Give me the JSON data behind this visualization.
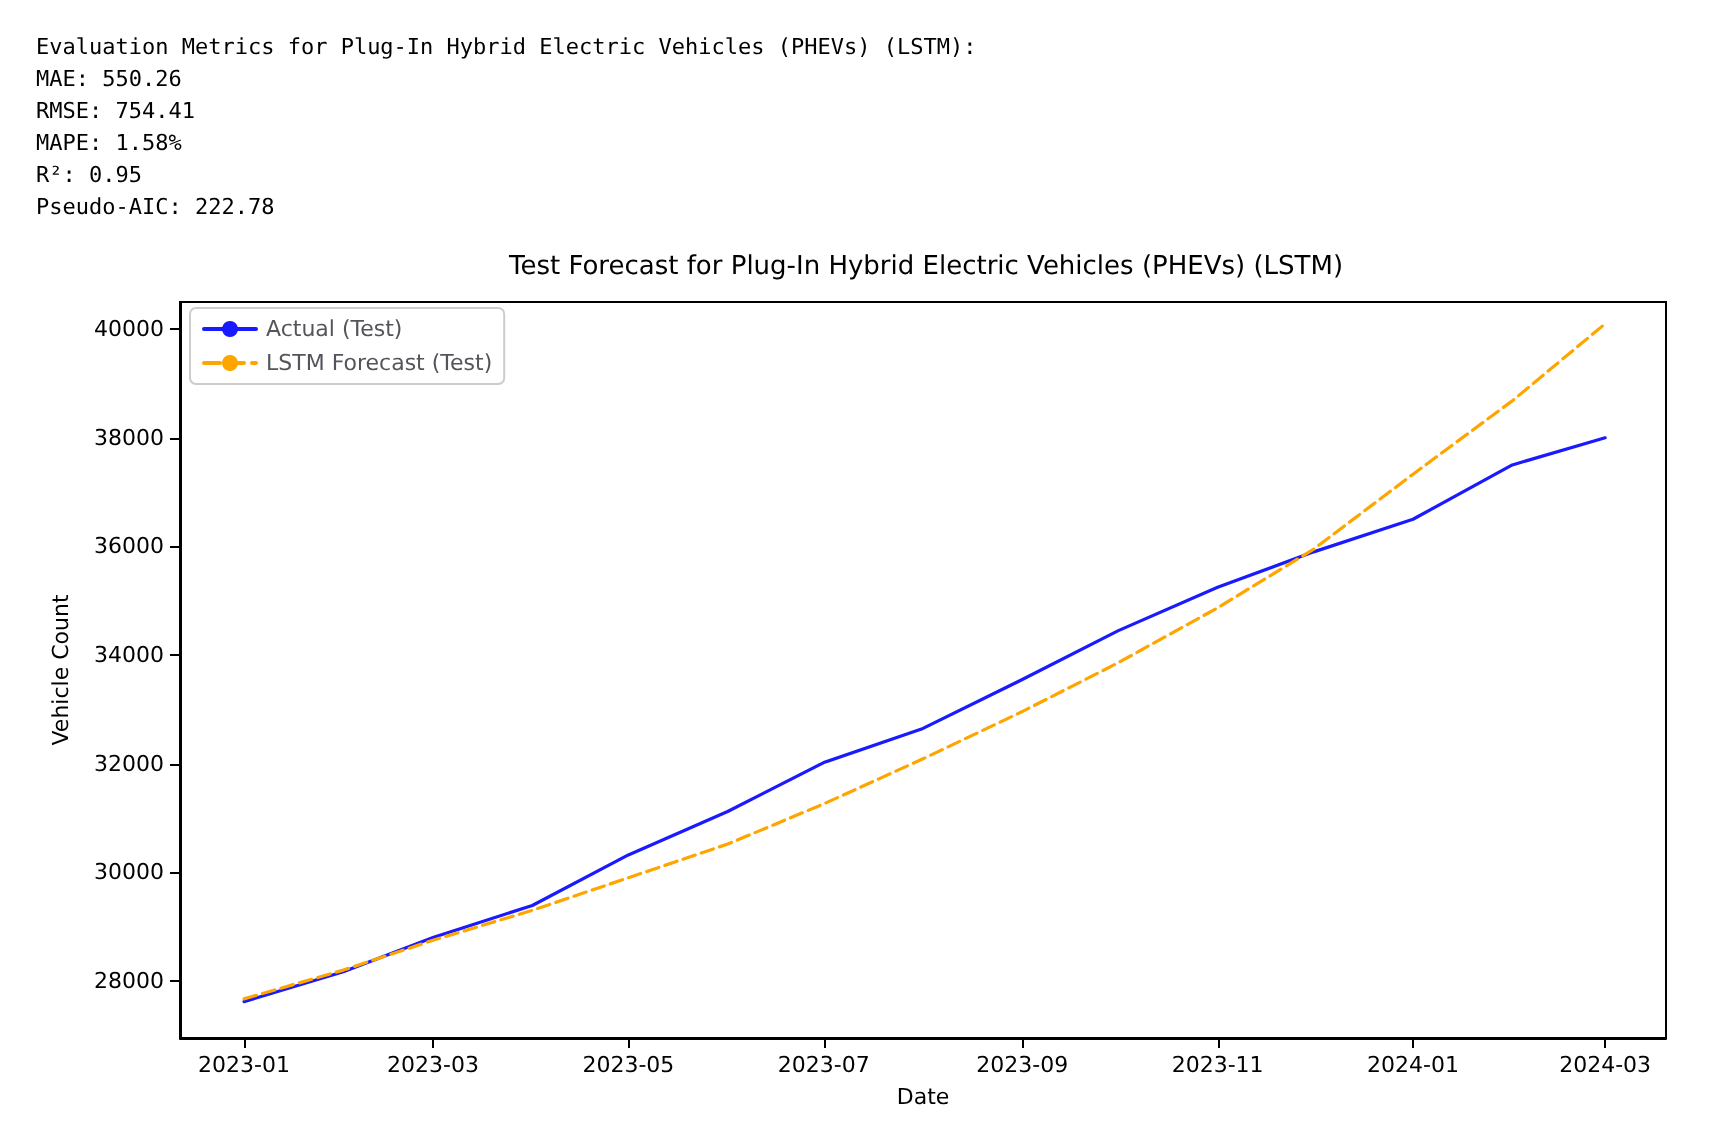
{
  "chart_data": {
    "type": "line",
    "title": "Test Forecast for Plug-In Hybrid Electric Vehicles (PHEVs) (LSTM)",
    "xlabel": "Date",
    "ylabel": "Vehicle Count",
    "annotations": [
      "Evaluation Metrics for Plug-In Hybrid Electric Vehicles (PHEVs) (LSTM):",
      "MAE: 550.26",
      "RMSE: 754.41",
      "MAPE: 1.58%",
      "R²: 0.95",
      "Pseudo-AIC: 222.78"
    ],
    "x": [
      "2023-01",
      "2023-02",
      "2023-03",
      "2023-04",
      "2023-05",
      "2023-06",
      "2023-07",
      "2023-08",
      "2023-09",
      "2023-10",
      "2023-11",
      "2023-12",
      "2024-01",
      "2024-02",
      "2024-03"
    ],
    "series": [
      {
        "name": "Actual (Test)",
        "color": "#1a1aff",
        "line_style": "solid",
        "values": [
          27620,
          28170,
          28800,
          29390,
          30320,
          31120,
          32020,
          32650,
          33550,
          34450,
          35250,
          35900,
          36500,
          37500,
          38000
        ]
      },
      {
        "name": "LSTM Forecast (Test)",
        "color": "#ffa500",
        "line_style": "dashed",
        "values": [
          27670,
          28200,
          28750,
          29300,
          29900,
          30520,
          31260,
          32090,
          32960,
          33860,
          34870,
          35950,
          37330,
          38680,
          40100
        ]
      }
    ],
    "xlim": [
      "2022-12-12",
      "2024-03-20"
    ],
    "xticks": [
      {
        "value": "2023-01",
        "label": "2023-01"
      },
      {
        "value": "2023-03",
        "label": "2023-03"
      },
      {
        "value": "2023-05",
        "label": "2023-05"
      },
      {
        "value": "2023-07",
        "label": "2023-07"
      },
      {
        "value": "2023-09",
        "label": "2023-09"
      },
      {
        "value": "2023-11",
        "label": "2023-11"
      },
      {
        "value": "2024-01",
        "label": "2024-01"
      },
      {
        "value": "2024-03",
        "label": "2024-03"
      }
    ],
    "ylim": [
      26950,
      40500
    ],
    "yticks": [
      28000,
      30000,
      32000,
      34000,
      36000,
      38000,
      40000
    ],
    "grid": false,
    "legend": "top left",
    "marker": "none"
  }
}
